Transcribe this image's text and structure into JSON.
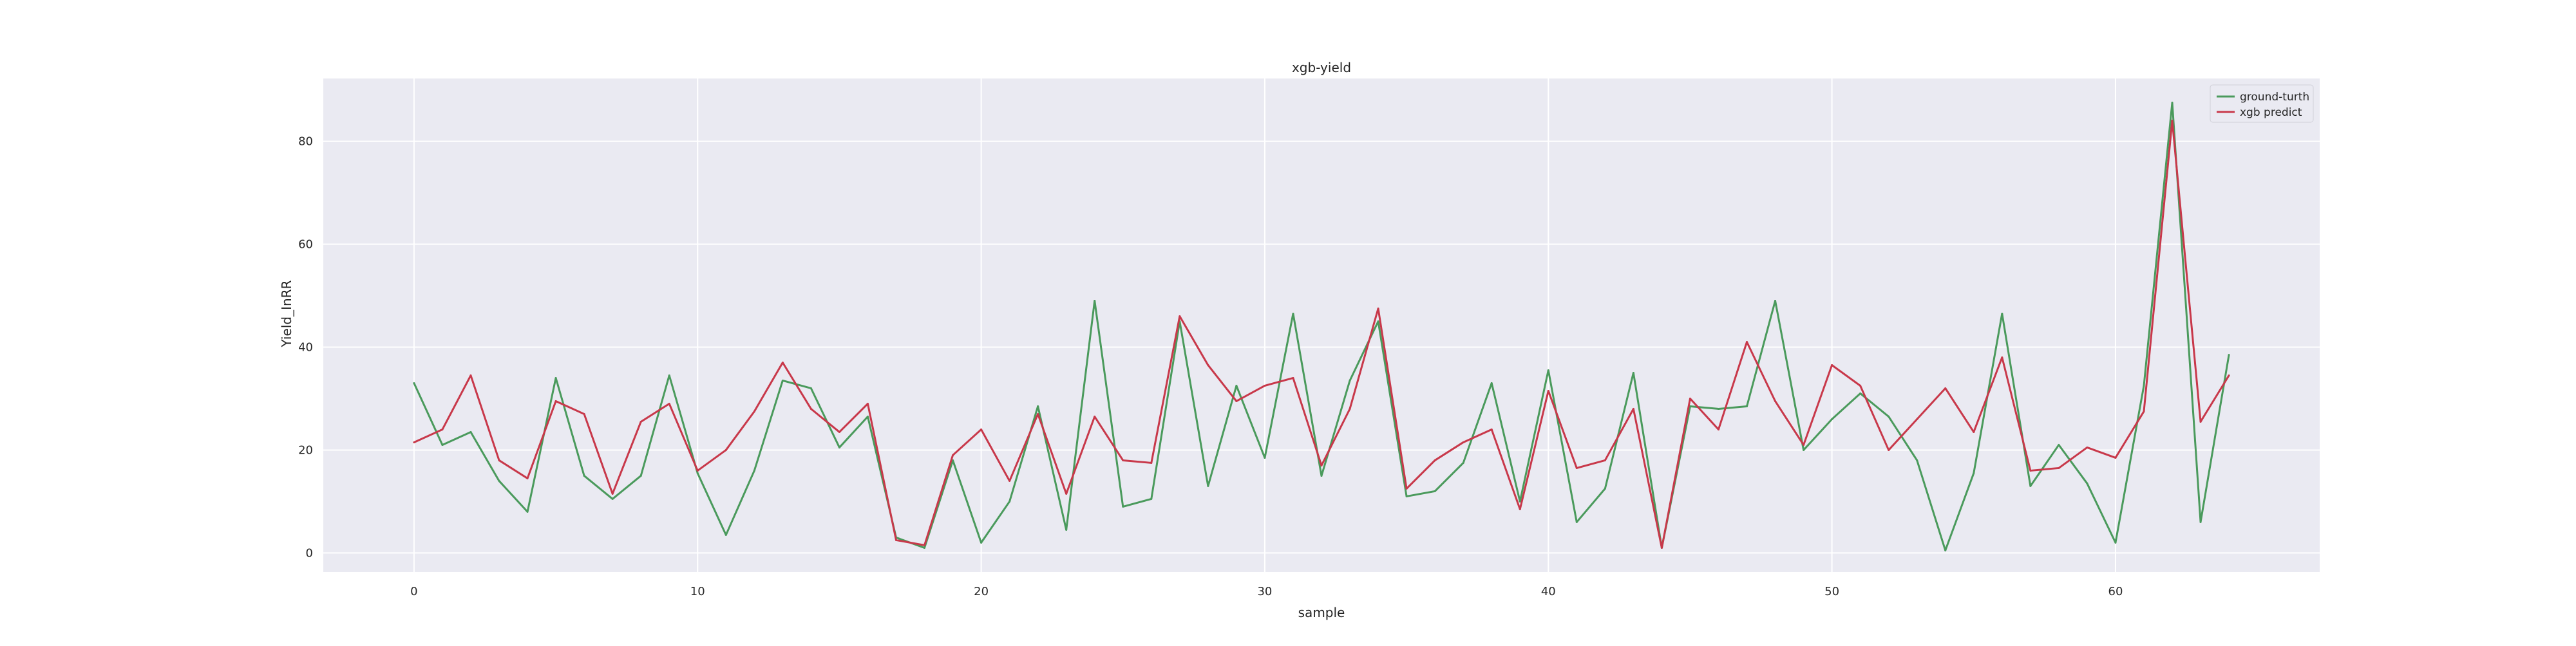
{
  "chart_data": {
    "type": "line",
    "title": "xgb-yield",
    "xlabel": "sample",
    "ylabel": "Yield_InRR",
    "xlim": [
      -3.2,
      67.2
    ],
    "ylim": [
      -3.7,
      92.2
    ],
    "x_ticks": [
      0,
      10,
      20,
      30,
      40,
      50,
      60
    ],
    "y_ticks": [
      0,
      20,
      40,
      60,
      80
    ],
    "grid": true,
    "legend_position": "top-right",
    "x": [
      0,
      1,
      2,
      3,
      4,
      5,
      6,
      7,
      8,
      9,
      10,
      11,
      12,
      13,
      14,
      15,
      16,
      17,
      18,
      19,
      20,
      21,
      22,
      23,
      24,
      25,
      26,
      27,
      28,
      29,
      30,
      31,
      32,
      33,
      34,
      35,
      36,
      37,
      38,
      39,
      40,
      41,
      42,
      43,
      44,
      45,
      46,
      47,
      48,
      49,
      50,
      51,
      52,
      53,
      54,
      55,
      56,
      57,
      58,
      59,
      60,
      61,
      62,
      63,
      64
    ],
    "series": [
      {
        "name": "ground-turth",
        "color": "#4a9a5c",
        "values": [
          33.0,
          21.0,
          23.5,
          14.0,
          8.0,
          34.0,
          15.0,
          10.5,
          15.0,
          34.5,
          15.5,
          3.5,
          16.0,
          33.5,
          32.0,
          20.5,
          26.5,
          3.0,
          1.0,
          18.0,
          2.0,
          10.0,
          28.5,
          4.5,
          49.0,
          9.0,
          10.5,
          45.0,
          13.0,
          32.5,
          18.5,
          46.5,
          15.0,
          33.5,
          45.0,
          11.0,
          12.0,
          17.5,
          33.0,
          10.0,
          35.5,
          6.0,
          12.5,
          35.0,
          1.0,
          28.5,
          28.0,
          28.5,
          49.0,
          20.0,
          26.0,
          31.0,
          26.5,
          18.0,
          0.5,
          15.5,
          46.5,
          13.0,
          21.0,
          13.5,
          2.0,
          32.5,
          87.5,
          6.0,
          38.5
        ]
      },
      {
        "name": "xgb predict",
        "color": "#c8384a",
        "values": [
          21.5,
          24.0,
          34.5,
          18.0,
          14.5,
          29.5,
          27.0,
          11.5,
          25.5,
          29.0,
          16.0,
          20.0,
          27.5,
          37.0,
          28.0,
          23.5,
          29.0,
          2.5,
          1.5,
          19.0,
          24.0,
          14.0,
          27.0,
          11.5,
          26.5,
          18.0,
          17.5,
          46.0,
          36.5,
          29.5,
          32.5,
          34.0,
          17.0,
          28.0,
          47.5,
          12.5,
          18.0,
          21.5,
          24.0,
          8.5,
          31.5,
          16.5,
          18.0,
          28.0,
          1.0,
          30.0,
          24.0,
          41.0,
          29.5,
          21.0,
          36.5,
          32.5,
          20.0,
          26.0,
          32.0,
          23.5,
          38.0,
          16.0,
          16.5,
          20.5,
          18.5,
          27.5,
          84.0,
          25.5,
          34.5
        ]
      }
    ]
  },
  "style": {
    "plot_background": "#eaeaf2",
    "grid_color": "#ffffff",
    "text_color": "#262626"
  }
}
